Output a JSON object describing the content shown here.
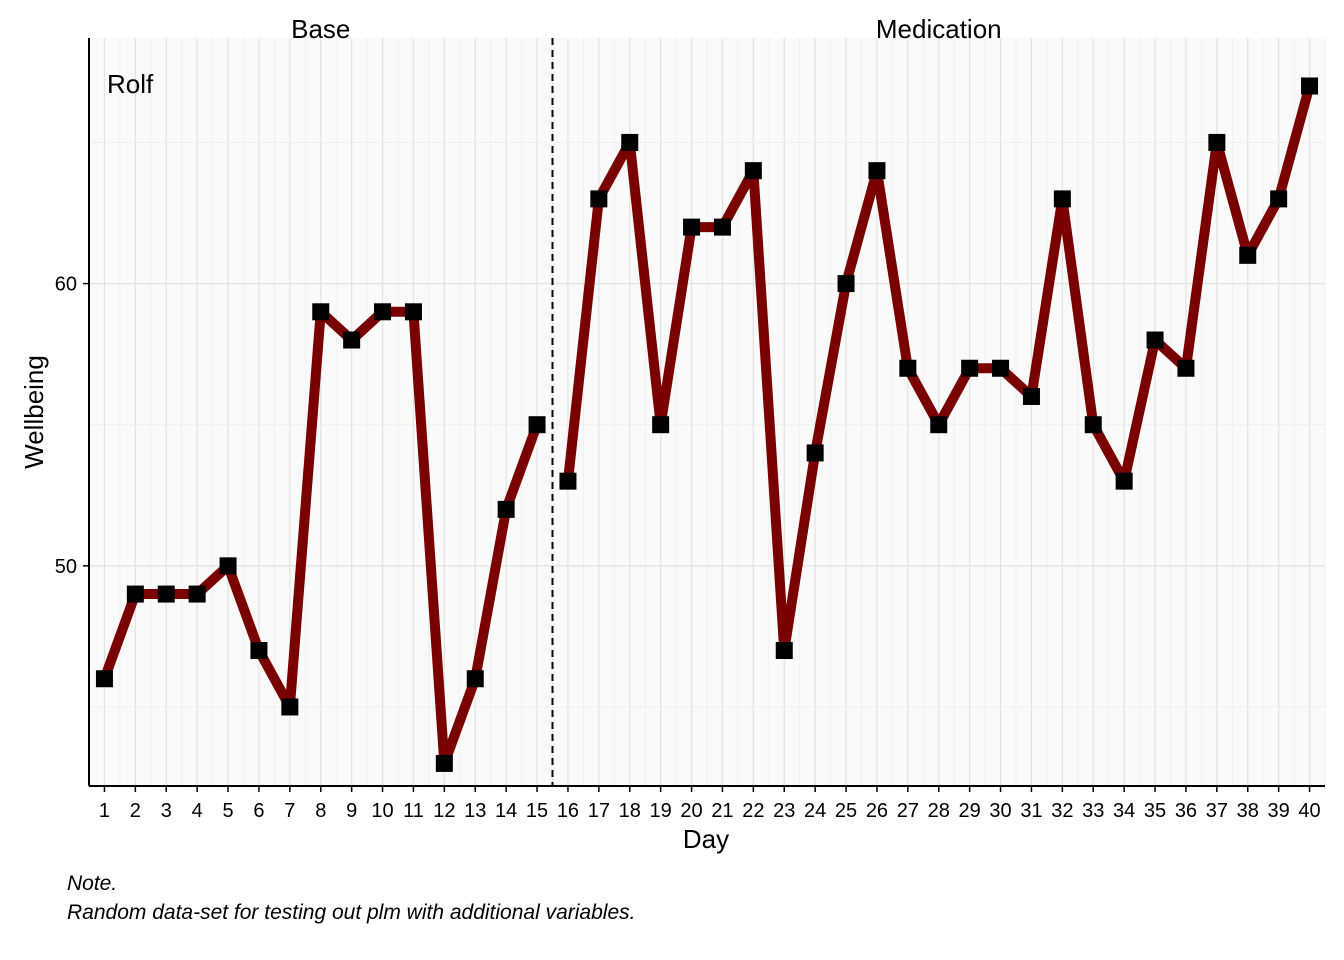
{
  "chart_data": {
    "type": "line",
    "case_label": "Rolf",
    "xlabel": "Day",
    "ylabel": "Wellbeing",
    "x": [
      1,
      2,
      3,
      4,
      5,
      6,
      7,
      8,
      9,
      10,
      11,
      12,
      13,
      14,
      15,
      16,
      17,
      18,
      19,
      20,
      21,
      22,
      23,
      24,
      25,
      26,
      27,
      28,
      29,
      30,
      31,
      32,
      33,
      34,
      35,
      36,
      37,
      38,
      39,
      40
    ],
    "y": [
      46,
      49,
      49,
      49,
      50,
      47,
      45,
      59,
      58,
      59,
      59,
      43,
      46,
      52,
      55,
      53,
      63,
      65,
      55,
      62,
      62,
      64,
      47,
      54,
      60,
      64,
      57,
      55,
      57,
      57,
      56,
      63,
      55,
      53,
      58,
      57,
      65,
      61,
      63,
      67
    ],
    "xlim": [
      0.5,
      40.5
    ],
    "ylim": [
      42.2,
      68.7
    ],
    "yticks": [
      50,
      60
    ],
    "phases": [
      {
        "name": "Base",
        "start": 1,
        "end": 15
      },
      {
        "name": "Medication",
        "start": 16,
        "end": 40
      }
    ],
    "phase_divider": 15.5,
    "grid": true,
    "line_color": "#7a0000",
    "marker_color": "#000000",
    "marker": "square",
    "panel_background": "#fafafa"
  },
  "note": {
    "title": "Note.",
    "text": "Random data-set for testing out plm with additional variables."
  }
}
